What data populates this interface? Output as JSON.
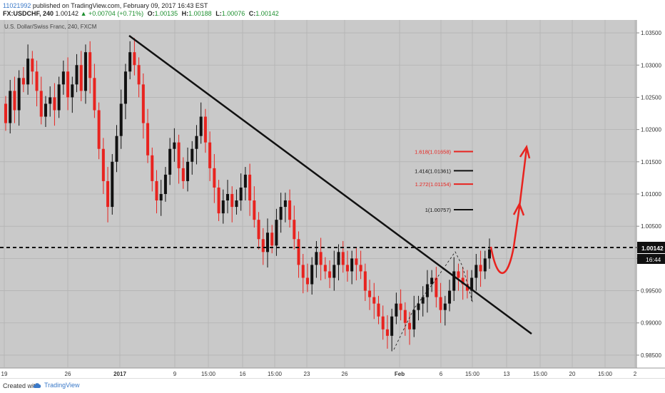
{
  "header": {
    "user": "11021992",
    "published": "published on TradingView.com, February 09, 2017 16:43 EST",
    "symbol": "FX:USDCHF, 240",
    "last": "1.00142",
    "change": "▲ +0.00704 (+0.71%)",
    "o_label": "O:",
    "o": "1.00135",
    "h_label": "H:",
    "h": "1.00188",
    "l_label": "L:",
    "l": "1.00076",
    "c_label": "C:",
    "c": "1.00142"
  },
  "chart": {
    "title": "U.S. Dollar/Swiss Franc, 240, FXCM",
    "current_price": "1.00142",
    "countdown": "16:44",
    "price_ticks": [
      "1.03500",
      "1.03000",
      "1.02500",
      "1.02000",
      "1.01500",
      "1.01000",
      "1.00500",
      "1.00000",
      "0.99500",
      "0.99000",
      "0.98500"
    ],
    "time_ticks": [
      "19",
      "26",
      "2017",
      "9",
      "15:00",
      "16",
      "15:00",
      "23",
      "26",
      "Feb",
      "6",
      "15:00",
      "13",
      "15:00",
      "20",
      "15:00",
      "2"
    ],
    "fib_levels": [
      {
        "label": "1.618(1.01658)",
        "color": "#e8231f"
      },
      {
        "label": "1.414(1.01361)",
        "color": "#111111"
      },
      {
        "label": "1.272(1.01154)",
        "color": "#e8231f"
      },
      {
        "label": "1(1.00757)",
        "color": "#111111"
      }
    ]
  },
  "chart_data": {
    "type": "candlestick",
    "title": "U.S. Dollar/Swiss Franc, 240, FXCM",
    "ylim": [
      0.983,
      1.037
    ],
    "colors": {
      "up": "#111111",
      "down": "#e8231f",
      "background": "#c9c9c9",
      "trendline": "#111111",
      "projection": "#e8231f"
    },
    "resistance_level": 1.00142,
    "fibonacci": [
      {
        "ratio": 1.618,
        "value": 1.01658
      },
      {
        "ratio": 1.414,
        "value": 1.01361
      },
      {
        "ratio": 1.272,
        "value": 1.01154
      },
      {
        "ratio": 1,
        "value": 1.00757
      }
    ],
    "closes": [
      1.021,
      1.026,
      1.023,
      1.028,
      1.027,
      1.031,
      1.029,
      1.026,
      1.022,
      1.024,
      1.025,
      1.023,
      1.027,
      1.029,
      1.025,
      1.027,
      1.03,
      1.026,
      1.032,
      1.028,
      1.023,
      1.017,
      1.012,
      1.008,
      1.015,
      1.019,
      1.024,
      1.029,
      1.032,
      1.03,
      1.027,
      1.021,
      1.016,
      1.012,
      1.009,
      1.01,
      1.013,
      1.017,
      1.018,
      1.014,
      1.012,
      1.015,
      1.017,
      1.019,
      1.022,
      1.018,
      1.014,
      1.011,
      1.007,
      1.009,
      1.01,
      1.008,
      1.009,
      1.011,
      1.013,
      1.009,
      1.006,
      1.003,
      1.001,
      1.004,
      1.002,
      1.006,
      1.008,
      1.009,
      1.006,
      1.003,
      0.999,
      0.997,
      0.996,
      0.999,
      1.001,
      0.999,
      0.998,
      0.997,
      0.999,
      1.001,
      0.999,
      0.998,
      1.0,
      0.999,
      0.998,
      0.995,
      0.994,
      0.993,
      0.991,
      0.989,
      0.988,
      0.991,
      0.993,
      0.992,
      0.99,
      0.989,
      0.992,
      0.993,
      0.994,
      0.996,
      0.997,
      0.994,
      0.992,
      0.993,
      0.995,
      0.998,
      0.997,
      0.996,
      0.995,
      0.997,
      0.999,
      0.998,
      1.0,
      1.0014
    ],
    "annotations": [
      "downtrend line",
      "dashed resistance 1.00142",
      "fibonacci extension",
      "projected bullish path"
    ]
  },
  "footer": {
    "created": "Created with",
    "brand": "TradingView"
  }
}
